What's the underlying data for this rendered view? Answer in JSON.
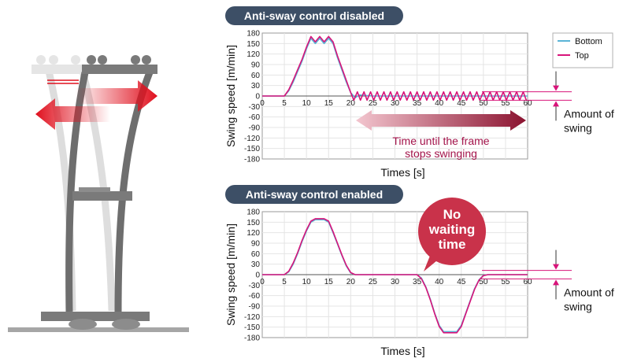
{
  "colors": {
    "bottom": "#5ab4d6",
    "top": "#d8147a",
    "header_bg": "#3d4f66",
    "arrow_red": "#e0101e",
    "maroon": "#8b1330",
    "callout": "#c9324a"
  },
  "figure": {
    "amount_of_swing_top": "Amount of swing",
    "amount_of_swing_bottom": "Amount of swing",
    "time_until_stop": "Time until the frame stops swinging",
    "no_waiting": "No waiting time"
  },
  "chart_data": [
    {
      "type": "line",
      "title": "Anti-sway control disabled",
      "xlabel": "Times [s]",
      "ylabel": "Swing speed [m/min]",
      "xlim": [
        0,
        60
      ],
      "ylim": [
        -180,
        180
      ],
      "x_ticks": [
        0,
        5,
        10,
        15,
        20,
        25,
        30,
        35,
        40,
        45,
        50,
        55,
        60
      ],
      "y_ticks": [
        180,
        150,
        120,
        90,
        60,
        30,
        0,
        -30,
        -60,
        -90,
        -120,
        -150,
        -180
      ],
      "legend": {
        "placement": "right",
        "entries": [
          "Bottom",
          "Top"
        ]
      },
      "series": [
        {
          "name": "Bottom",
          "x": [
            0,
            5,
            6,
            7,
            8,
            9,
            10,
            11,
            12,
            13,
            14,
            15,
            16,
            17,
            18,
            19,
            20,
            21,
            22,
            25,
            30,
            35,
            40,
            45,
            50,
            55,
            60
          ],
          "y": [
            0,
            0,
            15,
            40,
            70,
            100,
            135,
            165,
            150,
            165,
            150,
            165,
            150,
            110,
            75,
            40,
            10,
            -5,
            3,
            0,
            0,
            0,
            0,
            0,
            0,
            0,
            0
          ]
        },
        {
          "name": "Top",
          "x": [
            0,
            5,
            6,
            7,
            8,
            9,
            10,
            11,
            12,
            13,
            14,
            15,
            16,
            17,
            18,
            19,
            20,
            20.7,
            21.5,
            22.2,
            23,
            23.7,
            24.5,
            25.2,
            26,
            26.7,
            27.5,
            28.2,
            29,
            29.7,
            30.5,
            31.2,
            32,
            32.7,
            33.5,
            34.2,
            35,
            35.7,
            36.5,
            37.2,
            38,
            38.7,
            39.5,
            40.2,
            41,
            41.7,
            42.5,
            43.2,
            44,
            44.7,
            45.5,
            46.2,
            47,
            47.7,
            48.5,
            49.2,
            50,
            50.7,
            51.5,
            52.2,
            53,
            53.7,
            54.5,
            55.2,
            56,
            56.7,
            57.5,
            58.2,
            59,
            59.7
          ],
          "y": [
            0,
            0,
            18,
            45,
            75,
            105,
            140,
            170,
            155,
            170,
            155,
            170,
            155,
            115,
            80,
            45,
            10,
            -12,
            12,
            -12,
            12,
            -12,
            12,
            -12,
            12,
            -12,
            12,
            -12,
            12,
            -12,
            12,
            -12,
            12,
            -12,
            12,
            -12,
            12,
            -12,
            12,
            -12,
            12,
            -12,
            12,
            -12,
            12,
            -12,
            12,
            -12,
            12,
            -12,
            12,
            -12,
            12,
            -12,
            12,
            -12,
            12,
            -12,
            12,
            -12,
            12,
            -12,
            12,
            -12,
            12,
            -12,
            12,
            -12,
            12,
            -12
          ]
        }
      ]
    },
    {
      "type": "line",
      "title": "Anti-sway control enabled",
      "xlabel": "Times [s]",
      "ylabel": "Swing speed [m/min]",
      "xlim": [
        0,
        60
      ],
      "ylim": [
        -180,
        180
      ],
      "x_ticks": [
        0,
        5,
        10,
        15,
        20,
        25,
        30,
        35,
        40,
        45,
        50,
        55,
        60
      ],
      "y_ticks": [
        180,
        150,
        120,
        90,
        60,
        30,
        0,
        -30,
        -60,
        -90,
        -120,
        -150,
        -180
      ],
      "series": [
        {
          "name": "Bottom",
          "x": [
            0,
            5,
            6,
            7,
            8,
            9,
            10,
            11,
            12,
            13,
            14,
            15,
            16,
            17,
            18,
            19,
            20,
            21,
            25,
            30,
            35,
            36,
            37,
            38,
            39,
            40,
            41,
            42,
            43,
            44,
            45,
            46,
            47,
            48,
            49,
            50,
            51,
            55,
            60
          ],
          "y": [
            0,
            0,
            8,
            30,
            60,
            95,
            125,
            150,
            157,
            157,
            157,
            150,
            120,
            88,
            55,
            25,
            5,
            0,
            0,
            0,
            0,
            -10,
            -35,
            -70,
            -110,
            -145,
            -163,
            -163,
            -163,
            -163,
            -145,
            -110,
            -75,
            -40,
            -15,
            -2,
            0,
            0,
            0
          ]
        },
        {
          "name": "Top",
          "x": [
            0,
            5,
            6,
            7,
            8,
            9,
            10,
            11,
            12,
            13,
            14,
            15,
            16,
            17,
            18,
            19,
            20,
            21,
            25,
            30,
            35,
            36,
            37,
            38,
            39,
            40,
            41,
            42,
            43,
            44,
            45,
            46,
            47,
            48,
            49,
            50,
            51,
            55,
            60
          ],
          "y": [
            0,
            0,
            10,
            33,
            63,
            98,
            128,
            153,
            160,
            160,
            160,
            153,
            123,
            90,
            57,
            27,
            6,
            0,
            0,
            0,
            0,
            -12,
            -37,
            -72,
            -112,
            -148,
            -166,
            -166,
            -166,
            -166,
            -148,
            -112,
            -77,
            -42,
            -16,
            -3,
            0,
            0,
            0
          ]
        }
      ]
    }
  ]
}
